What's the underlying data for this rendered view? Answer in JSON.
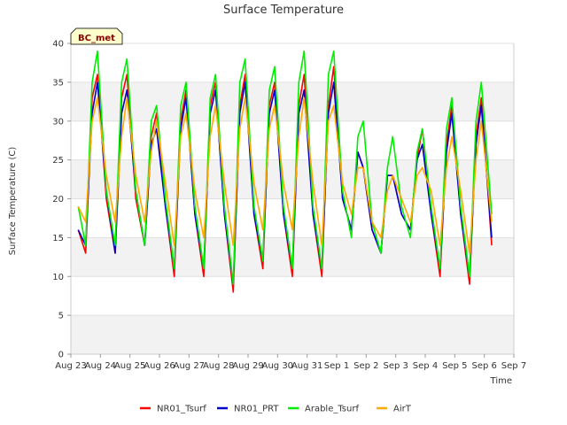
{
  "chart_data": {
    "type": "line",
    "title": "Surface Temperature",
    "xlabel": "Time",
    "ylabel": "Surface Temperature (C)",
    "badge": "BC_met",
    "ylim": [
      0,
      40
    ],
    "yticks": [
      0,
      5,
      10,
      15,
      20,
      25,
      30,
      35,
      40
    ],
    "xlim": [
      0,
      15
    ],
    "xticks": [
      {
        "value": 0,
        "label": "Aug 23"
      },
      {
        "value": 1,
        "label": "Aug 24"
      },
      {
        "value": 2,
        "label": "Aug 25"
      },
      {
        "value": 3,
        "label": "Aug 26"
      },
      {
        "value": 4,
        "label": "Aug 27"
      },
      {
        "value": 5,
        "label": "Aug 28"
      },
      {
        "value": 6,
        "label": "Aug 29"
      },
      {
        "value": 7,
        "label": "Aug 30"
      },
      {
        "value": 8,
        "label": "Aug 31"
      },
      {
        "value": 9,
        "label": "Sep 1"
      },
      {
        "value": 10,
        "label": "Sep 2"
      },
      {
        "value": 11,
        "label": "Sep 3"
      },
      {
        "value": 12,
        "label": "Sep 4"
      },
      {
        "value": 13,
        "label": "Sep 5"
      },
      {
        "value": 14,
        "label": "Sep 6"
      },
      {
        "value": 15,
        "label": "Sep 7"
      }
    ],
    "grid": true,
    "legend_position": "bottom",
    "series": [
      {
        "name": "NR01_Tsurf",
        "color": "#ff0000",
        "x": [
          0.25,
          0.5,
          0.72,
          0.9,
          1.2,
          1.5,
          1.72,
          1.9,
          2.2,
          2.5,
          2.72,
          2.9,
          3.2,
          3.5,
          3.72,
          3.9,
          4.2,
          4.5,
          4.72,
          4.9,
          5.2,
          5.5,
          5.72,
          5.9,
          6.2,
          6.5,
          6.72,
          6.9,
          7.2,
          7.5,
          7.72,
          7.9,
          8.2,
          8.5,
          8.72,
          8.9,
          9.2,
          9.5,
          9.72,
          9.9,
          10.2,
          10.5,
          10.72,
          10.9,
          11.2,
          11.5,
          11.72,
          11.9,
          12.2,
          12.5,
          12.72,
          12.9,
          13.2,
          13.5,
          13.72,
          13.9,
          14.25
        ],
        "y": [
          16,
          13,
          33,
          36,
          20,
          13,
          33,
          36,
          20,
          14,
          28,
          31,
          19,
          10,
          30,
          34,
          18,
          10,
          32,
          35,
          18,
          8,
          32,
          36,
          18,
          11,
          32,
          35,
          18,
          10,
          32,
          36,
          18,
          10,
          32,
          37,
          20,
          16,
          26,
          24,
          16,
          13,
          23,
          23,
          18,
          16,
          25,
          29,
          18,
          10,
          27,
          32,
          18,
          9,
          28,
          33,
          14
        ]
      },
      {
        "name": "NR01_PRT",
        "color": "#0000cc",
        "x": [
          0.25,
          0.5,
          0.72,
          0.9,
          1.2,
          1.5,
          1.72,
          1.9,
          2.2,
          2.5,
          2.72,
          2.9,
          3.2,
          3.5,
          3.72,
          3.9,
          4.2,
          4.5,
          4.72,
          4.9,
          5.2,
          5.5,
          5.72,
          5.9,
          6.2,
          6.5,
          6.72,
          6.9,
          7.2,
          7.5,
          7.72,
          7.9,
          8.2,
          8.5,
          8.72,
          8.9,
          9.2,
          9.5,
          9.72,
          9.9,
          10.2,
          10.5,
          10.72,
          10.9,
          11.2,
          11.5,
          11.72,
          11.9,
          12.2,
          12.5,
          12.72,
          12.9,
          13.2,
          13.5,
          13.72,
          13.9,
          14.25
        ],
        "y": [
          16,
          14,
          31,
          35,
          21,
          13,
          31,
          34,
          21,
          14,
          27,
          29,
          19,
          11,
          29,
          33,
          18,
          11,
          31,
          34,
          18,
          9,
          31,
          35,
          18,
          12,
          31,
          34,
          18,
          11,
          31,
          34,
          18,
          11,
          31,
          35,
          20,
          16,
          26,
          24,
          16,
          13,
          23,
          23,
          18,
          16,
          25,
          27,
          18,
          11,
          26,
          31,
          18,
          10,
          27,
          32,
          15
        ]
      },
      {
        "name": "Arable_Tsurf",
        "color": "#00ee00",
        "x": [
          0.25,
          0.5,
          0.72,
          0.9,
          1.2,
          1.5,
          1.72,
          1.9,
          2.2,
          2.5,
          2.72,
          2.9,
          3.2,
          3.5,
          3.72,
          3.9,
          4.2,
          4.5,
          4.72,
          4.9,
          5.2,
          5.5,
          5.72,
          5.9,
          6.2,
          6.5,
          6.72,
          6.9,
          7.2,
          7.5,
          7.72,
          7.9,
          8.2,
          8.5,
          8.72,
          8.9,
          9.2,
          9.5,
          9.72,
          9.9,
          10.2,
          10.5,
          10.72,
          10.9,
          11.2,
          11.5,
          11.72,
          11.9,
          12.2,
          12.5,
          12.72,
          12.9,
          13.2,
          13.5,
          13.72,
          13.9,
          14.25
        ],
        "y": [
          19,
          14,
          35,
          39,
          21,
          14,
          35,
          38,
          21,
          14,
          30,
          32,
          20,
          11,
          32,
          35,
          19,
          11,
          33,
          36,
          19,
          9,
          35,
          38,
          19,
          12,
          34,
          37,
          19,
          11,
          35,
          39,
          19,
          11,
          36,
          39,
          21,
          15,
          28,
          30,
          17,
          13,
          24,
          28,
          19,
          15,
          26,
          29,
          19,
          11,
          29,
          33,
          19,
          10,
          30,
          35,
          18
        ]
      },
      {
        "name": "AirT",
        "color": "#ffaa00",
        "x": [
          0.25,
          0.5,
          0.72,
          0.9,
          1.2,
          1.5,
          1.72,
          1.9,
          2.2,
          2.5,
          2.72,
          2.9,
          3.2,
          3.5,
          3.72,
          3.9,
          4.2,
          4.5,
          4.72,
          4.9,
          5.2,
          5.5,
          5.72,
          5.9,
          6.2,
          6.5,
          6.72,
          6.9,
          7.2,
          7.5,
          7.72,
          7.9,
          8.2,
          8.5,
          8.72,
          8.9,
          9.2,
          9.5,
          9.72,
          9.9,
          10.2,
          10.5,
          10.72,
          10.9,
          11.2,
          11.5,
          11.72,
          11.9,
          12.2,
          12.5,
          12.72,
          12.9,
          13.2,
          13.5,
          13.72,
          13.9,
          14.25
        ],
        "y": [
          19,
          17,
          30,
          33,
          23,
          17,
          28,
          33,
          23,
          17,
          26,
          30,
          22,
          14,
          28,
          31,
          21,
          15,
          28,
          32,
          22,
          14,
          29,
          33,
          22,
          16,
          29,
          32,
          22,
          16,
          28,
          33,
          22,
          14,
          30,
          32,
          22,
          18,
          24,
          24,
          17,
          15,
          21,
          23,
          20,
          17,
          23,
          24,
          21,
          14,
          24,
          28,
          21,
          13,
          25,
          30,
          17
        ]
      }
    ]
  }
}
